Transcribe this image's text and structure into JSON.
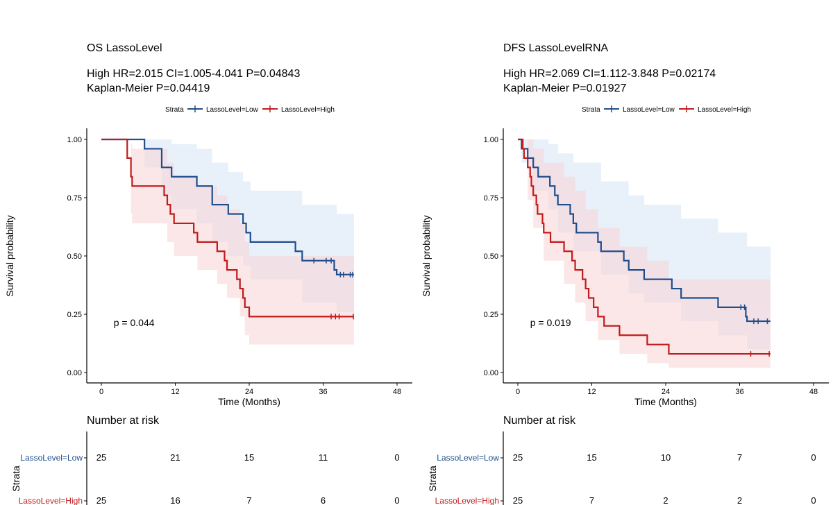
{
  "colors": {
    "low": "#1f4e8c",
    "high": "#c11b1b",
    "low_band": "#d6e4f5",
    "high_band": "#f8d3d3"
  },
  "chart_data": [
    {
      "type": "line",
      "title": "OS LassoLevel",
      "subtitle_line1": "High HR=2.015 CI=1.005-4.041 P=0.04843",
      "subtitle_line2": "Kaplan-Meier P=0.04419",
      "legend_title": "Strata",
      "xlabel": "Time (Months)",
      "ylabel": "Survival probability",
      "xlim": [
        0,
        48
      ],
      "ylim": [
        0,
        1
      ],
      "x_ticks": [
        "0",
        "12",
        "24",
        "36",
        "48"
      ],
      "y_ticks": [
        "0.00",
        "0.25",
        "0.50",
        "0.75",
        "1.00"
      ],
      "pvalue_label": "p = 0.044",
      "pvalue_pos": [
        2,
        0.2
      ],
      "series": [
        {
          "name": "LassoLevel=Low",
          "steps": [
            [
              0,
              1
            ],
            [
              3.5,
              1
            ],
            [
              3.5,
              1
            ],
            [
              7,
              0.96
            ],
            [
              9.8,
              0.88
            ],
            [
              11.4,
              0.84
            ],
            [
              15.5,
              0.8
            ],
            [
              18,
              0.72
            ],
            [
              20.6,
              0.68
            ],
            [
              23,
              0.64
            ],
            [
              23.5,
              0.6
            ],
            [
              24.2,
              0.56
            ],
            [
              31.5,
              0.52
            ],
            [
              32.6,
              0.48
            ],
            [
              37.8,
              0.44
            ],
            [
              38.2,
              0.42
            ],
            [
              41,
              0.42
            ]
          ],
          "censor": [
            [
              34.5,
              0.48
            ],
            [
              36.5,
              0.48
            ],
            [
              37.3,
              0.48
            ],
            [
              38.8,
              0.42
            ],
            [
              39.3,
              0.42
            ],
            [
              40.4,
              0.42
            ],
            [
              40.8,
              0.42
            ]
          ],
          "band": [
            [
              0,
              1,
              1
            ],
            [
              3.5,
              1,
              1
            ],
            [
              7,
              1,
              0.88
            ],
            [
              9.8,
              1,
              0.76
            ],
            [
              11.4,
              0.98,
              0.7
            ],
            [
              15.5,
              0.96,
              0.64
            ],
            [
              18,
              0.9,
              0.56
            ],
            [
              20.6,
              0.86,
              0.5
            ],
            [
              23,
              0.82,
              0.46
            ],
            [
              24.2,
              0.78,
              0.4
            ],
            [
              32.6,
              0.72,
              0.3
            ],
            [
              38.2,
              0.68,
              0.26
            ],
            [
              41,
              0.68,
              0.26
            ]
          ]
        },
        {
          "name": "LassoLevel=High",
          "steps": [
            [
              0,
              1
            ],
            [
              4,
              1
            ],
            [
              4.2,
              0.92
            ],
            [
              4.8,
              0.84
            ],
            [
              5,
              0.84
            ],
            [
              5,
              0.8
            ],
            [
              10.2,
              0.76
            ],
            [
              10.7,
              0.72
            ],
            [
              11.2,
              0.68
            ],
            [
              11.8,
              0.64
            ],
            [
              15,
              0.6
            ],
            [
              15.6,
              0.56
            ],
            [
              18.8,
              0.52
            ],
            [
              20,
              0.48
            ],
            [
              20.4,
              0.44
            ],
            [
              22,
              0.4
            ],
            [
              22.5,
              0.36
            ],
            [
              23,
              0.32
            ],
            [
              23.3,
              0.28
            ],
            [
              24,
              0.24
            ],
            [
              41,
              0.24
            ]
          ],
          "censor": [
            [
              37.3,
              0.24
            ],
            [
              38,
              0.24
            ],
            [
              38.6,
              0.24
            ],
            [
              40.9,
              0.24
            ]
          ],
          "band": [
            [
              0,
              1,
              1
            ],
            [
              4,
              1,
              1
            ],
            [
              4.8,
              0.98,
              0.68
            ],
            [
              5,
              0.96,
              0.64
            ],
            [
              10.7,
              0.9,
              0.56
            ],
            [
              11.8,
              0.84,
              0.5
            ],
            [
              15.6,
              0.8,
              0.44
            ],
            [
              18.8,
              0.76,
              0.38
            ],
            [
              20.4,
              0.7,
              0.32
            ],
            [
              22.5,
              0.64,
              0.24
            ],
            [
              23.3,
              0.56,
              0.16
            ],
            [
              24,
              0.5,
              0.12
            ],
            [
              41,
              0.5,
              0.12
            ]
          ]
        }
      ],
      "risk_table": {
        "title": "Number at risk",
        "strata_label": "Strata",
        "rows": [
          {
            "label": "LassoLevel=Low",
            "values": [
              "25",
              "21",
              "15",
              "11",
              "0"
            ]
          },
          {
            "label": "LassoLevel=High",
            "values": [
              "25",
              "16",
              "7",
              "6",
              "0"
            ]
          }
        ]
      }
    },
    {
      "type": "line",
      "title": "DFS LassoLevelRNA",
      "subtitle_line1": "High HR=2.069 CI=1.112-3.848 P=0.02174",
      "subtitle_line2": "Kaplan-Meier P=0.01927",
      "legend_title": "Strata",
      "xlabel": "Time (Months)",
      "ylabel": "Survival probability",
      "xlim": [
        0,
        48
      ],
      "ylim": [
        0,
        1
      ],
      "x_ticks": [
        "0",
        "12",
        "24",
        "36",
        "48"
      ],
      "y_ticks": [
        "0.00",
        "0.25",
        "0.50",
        "0.75",
        "1.00"
      ],
      "pvalue_label": "p = 0.019",
      "pvalue_pos": [
        2,
        0.2
      ],
      "series": [
        {
          "name": "LassoLevel=Low",
          "steps": [
            [
              0,
              1
            ],
            [
              0.6,
              1
            ],
            [
              0.6,
              0.96
            ],
            [
              1.6,
              0.92
            ],
            [
              2.5,
              0.88
            ],
            [
              3.3,
              0.84
            ],
            [
              5,
              0.84
            ],
            [
              5.2,
              0.8
            ],
            [
              6,
              0.76
            ],
            [
              6.5,
              0.72
            ],
            [
              8.5,
              0.68
            ],
            [
              9,
              0.64
            ],
            [
              9.5,
              0.6
            ],
            [
              13,
              0.56
            ],
            [
              13.5,
              0.52
            ],
            [
              17.2,
              0.48
            ],
            [
              18,
              0.44
            ],
            [
              20.5,
              0.4
            ],
            [
              25,
              0.36
            ],
            [
              26.5,
              0.32
            ],
            [
              32.5,
              0.28
            ],
            [
              37,
              0.24
            ],
            [
              37.2,
              0.22
            ],
            [
              41,
              0.22
            ]
          ],
          "censor": [
            [
              36.2,
              0.28
            ],
            [
              36.8,
              0.28
            ],
            [
              38.3,
              0.22
            ],
            [
              39,
              0.22
            ],
            [
              40.5,
              0.22
            ]
          ],
          "band": [
            [
              0,
              1,
              1
            ],
            [
              0.6,
              1,
              0.9
            ],
            [
              2.5,
              1,
              0.78
            ],
            [
              5,
              0.98,
              0.7
            ],
            [
              6.5,
              0.94,
              0.6
            ],
            [
              9,
              0.9,
              0.52
            ],
            [
              13.5,
              0.82,
              0.42
            ],
            [
              18,
              0.76,
              0.34
            ],
            [
              20.5,
              0.72,
              0.3
            ],
            [
              26.5,
              0.66,
              0.22
            ],
            [
              32.5,
              0.6,
              0.16
            ],
            [
              37.2,
              0.54,
              0.1
            ],
            [
              41,
              0.54,
              0.1
            ]
          ]
        },
        {
          "name": "LassoLevel=High",
          "steps": [
            [
              0,
              1
            ],
            [
              0.6,
              1
            ],
            [
              0.8,
              0.96
            ],
            [
              1,
              0.92
            ],
            [
              1.6,
              0.88
            ],
            [
              2,
              0.84
            ],
            [
              2.2,
              0.8
            ],
            [
              2.5,
              0.76
            ],
            [
              3,
              0.72
            ],
            [
              3.2,
              0.68
            ],
            [
              4,
              0.64
            ],
            [
              4.2,
              0.6
            ],
            [
              5.3,
              0.56
            ],
            [
              7.5,
              0.52
            ],
            [
              8.8,
              0.48
            ],
            [
              9.3,
              0.44
            ],
            [
              10.5,
              0.4
            ],
            [
              11,
              0.36
            ],
            [
              11.5,
              0.32
            ],
            [
              12.3,
              0.28
            ],
            [
              13,
              0.24
            ],
            [
              14,
              0.2
            ],
            [
              16.5,
              0.16
            ],
            [
              21,
              0.12
            ],
            [
              24.5,
              0.08
            ],
            [
              41,
              0.08
            ]
          ],
          "censor": [
            [
              37.8,
              0.08
            ],
            [
              40.8,
              0.08
            ]
          ],
          "band": [
            [
              0,
              1,
              1
            ],
            [
              0.6,
              1,
              1
            ],
            [
              1.6,
              1,
              0.74
            ],
            [
              2.5,
              0.96,
              0.62
            ],
            [
              4.2,
              0.9,
              0.48
            ],
            [
              7.5,
              0.84,
              0.38
            ],
            [
              9.3,
              0.78,
              0.3
            ],
            [
              11,
              0.7,
              0.22
            ],
            [
              13,
              0.62,
              0.14
            ],
            [
              16.5,
              0.54,
              0.08
            ],
            [
              21,
              0.48,
              0.04
            ],
            [
              24.5,
              0.4,
              0.02
            ],
            [
              41,
              0.4,
              0.02
            ]
          ]
        }
      ],
      "risk_table": {
        "title": "Number at risk",
        "strata_label": "Strata",
        "rows": [
          {
            "label": "LassoLevel=Low",
            "values": [
              "25",
              "15",
              "10",
              "7",
              "0"
            ]
          },
          {
            "label": "LassoLevel=High",
            "values": [
              "25",
              "7",
              "2",
              "2",
              "0"
            ]
          }
        ]
      }
    }
  ]
}
